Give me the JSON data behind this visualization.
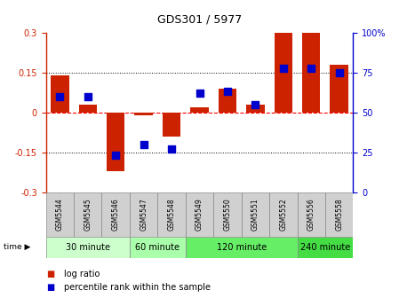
{
  "title": "GDS301 / 5977",
  "samples": [
    "GSM5544",
    "GSM5545",
    "GSM5546",
    "GSM5547",
    "GSM5548",
    "GSM5549",
    "GSM5550",
    "GSM5551",
    "GSM5552",
    "GSM5556",
    "GSM5558"
  ],
  "log_ratio": [
    0.14,
    0.03,
    -0.22,
    -0.01,
    -0.09,
    0.02,
    0.09,
    0.03,
    0.3,
    0.3,
    0.18
  ],
  "percentile": [
    60,
    60,
    23,
    30,
    27,
    62,
    63,
    55,
    78,
    78,
    75
  ],
  "time_groups": [
    {
      "label": "30 minute",
      "start": 0,
      "end": 3,
      "color": "#ccffcc"
    },
    {
      "label": "60 minute",
      "start": 3,
      "end": 5,
      "color": "#aaffaa"
    },
    {
      "label": "120 minute",
      "start": 5,
      "end": 9,
      "color": "#66ee66"
    },
    {
      "label": "240 minute",
      "start": 9,
      "end": 11,
      "color": "#44dd44"
    }
  ],
  "bar_color": "#cc2200",
  "dot_color": "#0000cc",
  "ylim_left": [
    -0.3,
    0.3
  ],
  "ylim_right": [
    0,
    100
  ],
  "yticks_left": [
    -0.3,
    -0.15,
    0,
    0.15,
    0.3
  ],
  "yticks_right": [
    0,
    25,
    50,
    75,
    100
  ],
  "hlines_dotted": [
    -0.15,
    0.15
  ],
  "hline_dashed": 0,
  "bar_width": 0.65,
  "dot_size": 28,
  "background_color": "#ffffff",
  "plot_bg": "#ffffff",
  "legend_log_ratio": "log ratio",
  "legend_percentile": "percentile rank within the sample",
  "sample_box_color": "#d0d0d0",
  "time_label": "time"
}
